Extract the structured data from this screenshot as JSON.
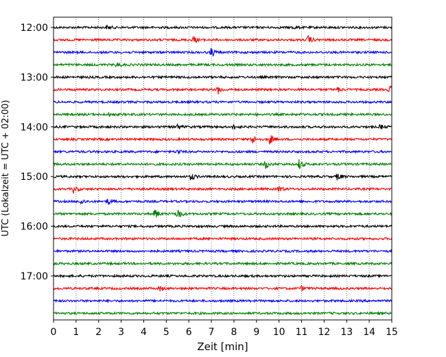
{
  "chart_data": {
    "type": "line",
    "title": "",
    "xlabel": "Zeit  [min]",
    "ylabel": "UTC (Lokalzeit = UTC + 02:00)",
    "xlim": [
      0,
      15
    ],
    "x_ticks": [
      0,
      1,
      2,
      3,
      4,
      5,
      6,
      7,
      8,
      9,
      10,
      11,
      12,
      13,
      14,
      15
    ],
    "y_tick_labels": [
      "12:00",
      "13:00",
      "14:00",
      "15:00",
      "16:00",
      "17:00"
    ],
    "grid": "vertical dotted",
    "trace_interval_minutes": 15,
    "traces": [
      {
        "start": "12:00",
        "color": "#000000",
        "events": [
          {
            "t": 2.4,
            "amp": 0.5
          },
          {
            "t": 10.6,
            "amp": 0.4
          }
        ]
      },
      {
        "start": "12:15",
        "color": "#ff0000",
        "events": [
          {
            "t": 6.2,
            "amp": 1.0
          },
          {
            "t": 11.3,
            "amp": 1.1
          }
        ]
      },
      {
        "start": "12:30",
        "color": "#0000ff",
        "events": [
          {
            "t": 7.0,
            "amp": 1.2
          }
        ]
      },
      {
        "start": "12:45",
        "color": "#008000",
        "events": [
          {
            "t": 2.8,
            "amp": 0.5
          }
        ]
      },
      {
        "start": "13:00",
        "color": "#000000",
        "events": []
      },
      {
        "start": "13:15",
        "color": "#ff0000",
        "events": [
          {
            "t": 7.3,
            "amp": 1.0
          },
          {
            "t": 12.6,
            "amp": 0.6
          },
          {
            "t": 14.9,
            "amp": 1.0
          }
        ]
      },
      {
        "start": "13:30",
        "color": "#0000ff",
        "events": []
      },
      {
        "start": "13:45",
        "color": "#008000",
        "events": [
          {
            "t": 2.5,
            "amp": 0.5
          }
        ]
      },
      {
        "start": "14:00",
        "color": "#000000",
        "events": [
          {
            "t": 5.5,
            "amp": 0.7
          },
          {
            "t": 8.0,
            "amp": 0.6
          },
          {
            "t": 14.5,
            "amp": 0.6
          }
        ]
      },
      {
        "start": "14:15",
        "color": "#ff0000",
        "events": [
          {
            "t": 8.8,
            "amp": 1.2
          },
          {
            "t": 9.6,
            "amp": 1.2
          }
        ]
      },
      {
        "start": "14:30",
        "color": "#0000ff",
        "events": [
          {
            "t": 5.5,
            "amp": 0.5
          }
        ]
      },
      {
        "start": "14:45",
        "color": "#008000",
        "events": [
          {
            "t": 9.4,
            "amp": 1.1
          },
          {
            "t": 10.9,
            "amp": 1.3
          }
        ]
      },
      {
        "start": "15:00",
        "color": "#000000",
        "events": [
          {
            "t": 6.1,
            "amp": 1.0
          },
          {
            "t": 12.6,
            "amp": 1.0
          }
        ]
      },
      {
        "start": "15:15",
        "color": "#ff0000",
        "events": [
          {
            "t": 0.9,
            "amp": 1.0
          },
          {
            "t": 10.0,
            "amp": 0.8
          }
        ]
      },
      {
        "start": "15:30",
        "color": "#0000ff",
        "events": [
          {
            "t": 1.2,
            "amp": 0.8
          },
          {
            "t": 2.4,
            "amp": 0.8
          }
        ]
      },
      {
        "start": "15:45",
        "color": "#008000",
        "events": [
          {
            "t": 4.5,
            "amp": 1.4
          },
          {
            "t": 5.5,
            "amp": 1.8
          }
        ]
      },
      {
        "start": "16:00",
        "color": "#000000",
        "events": []
      },
      {
        "start": "16:15",
        "color": "#ff0000",
        "events": []
      },
      {
        "start": "16:30",
        "color": "#0000ff",
        "events": []
      },
      {
        "start": "16:45",
        "color": "#008000",
        "events": []
      },
      {
        "start": "17:00",
        "color": "#000000",
        "events": []
      },
      {
        "start": "17:15",
        "color": "#ff0000",
        "events": [
          {
            "t": 4.7,
            "amp": 0.6
          },
          {
            "t": 11.0,
            "amp": 0.5
          }
        ]
      },
      {
        "start": "17:30",
        "color": "#0000ff",
        "events": []
      },
      {
        "start": "17:45",
        "color": "#008000",
        "events": []
      }
    ]
  }
}
